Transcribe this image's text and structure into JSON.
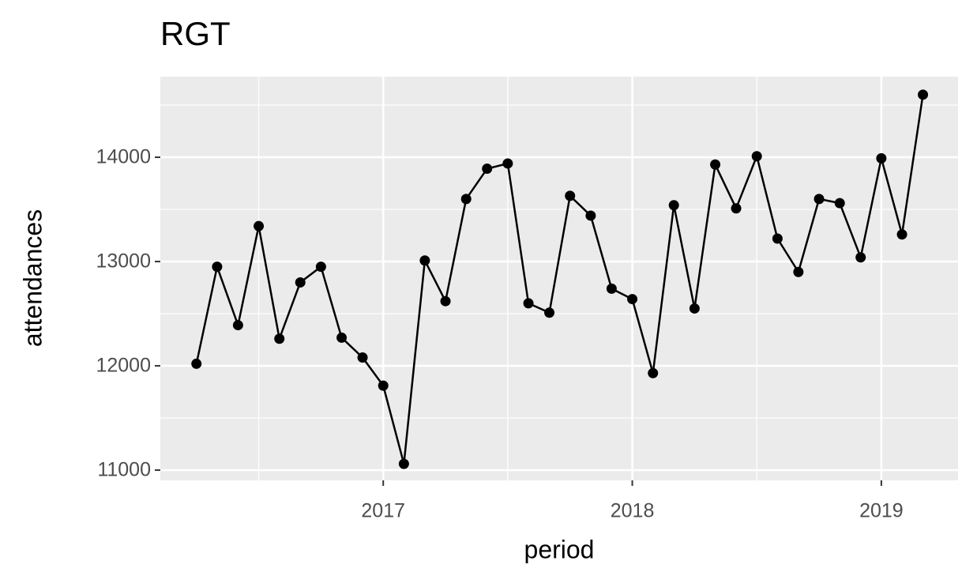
{
  "chart_data": {
    "type": "line",
    "title": "RGT",
    "x_label": "period",
    "y_label": "attendances",
    "x": [
      2016.25,
      2016.333,
      2016.417,
      2016.5,
      2016.583,
      2016.667,
      2016.75,
      2016.833,
      2016.917,
      2017,
      2017.083,
      2017.167,
      2017.25,
      2017.333,
      2017.417,
      2017.5,
      2017.583,
      2017.667,
      2017.75,
      2017.833,
      2017.917,
      2018,
      2018.083,
      2018.167,
      2018.25,
      2018.333,
      2018.417,
      2018.5,
      2018.583,
      2018.667,
      2018.75,
      2018.833,
      2018.917,
      2019,
      2019.083,
      2019.167
    ],
    "series": [
      {
        "name": "attendances",
        "color": "#000000",
        "values": [
          12020,
          12950,
          12390,
          13340,
          12260,
          12800,
          12950,
          12270,
          12080,
          11810,
          11060,
          13010,
          12620,
          13600,
          13890,
          13940,
          12600,
          12510,
          13630,
          13440,
          12740,
          12640,
          11930,
          13540,
          12550,
          13930,
          13510,
          14010,
          13220,
          12900,
          13600,
          13560,
          13040,
          13990,
          13260,
          14600
        ]
      }
    ],
    "xlim": [
      2016.105,
      2019.308
    ],
    "xticks": [
      2017,
      2018,
      2019
    ],
    "ylim": [
      10902,
      14773
    ],
    "yticks": [
      11000,
      12000,
      13000,
      14000
    ],
    "grid": true,
    "panel_color": "#ebebeb"
  }
}
